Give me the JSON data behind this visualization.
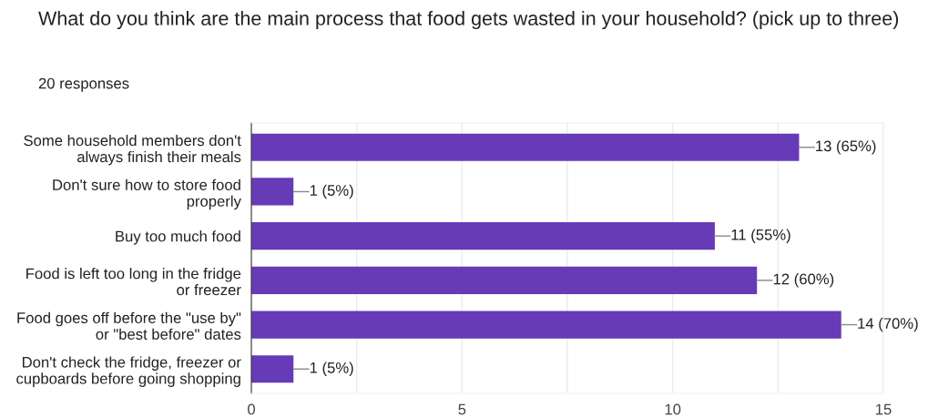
{
  "chart_data": {
    "type": "bar",
    "orientation": "horizontal",
    "title": "What do you think are the main process that food gets wasted in your household? (pick up to three)",
    "subtitle": "20 responses",
    "categories": [
      "Some household members don't\nalways finish their meals",
      "Don't sure how to store food\nproperly",
      "Buy too much food",
      "Food is left too long in the fridge\nor freezer",
      "Food goes off before the \"use by\"\nor \"best before\" dates",
      "Don't check the fridge, freezer or\ncupboards before going shopping"
    ],
    "values": [
      13,
      1,
      11,
      12,
      14,
      1
    ],
    "value_labels": [
      "13 (65%)",
      "1 (5%)",
      "11 (55%)",
      "12 (60%)",
      "14 (70%)",
      "1 (5%)"
    ],
    "color": "#673ab7",
    "xlim": [
      0,
      15
    ],
    "xticks": [
      0,
      {
        "value": 2.5,
        "label": null
      },
      5,
      {
        "value": 7.5,
        "label": null
      },
      10,
      {
        "value": 12.5,
        "label": null
      },
      15
    ],
    "grid": "x"
  }
}
